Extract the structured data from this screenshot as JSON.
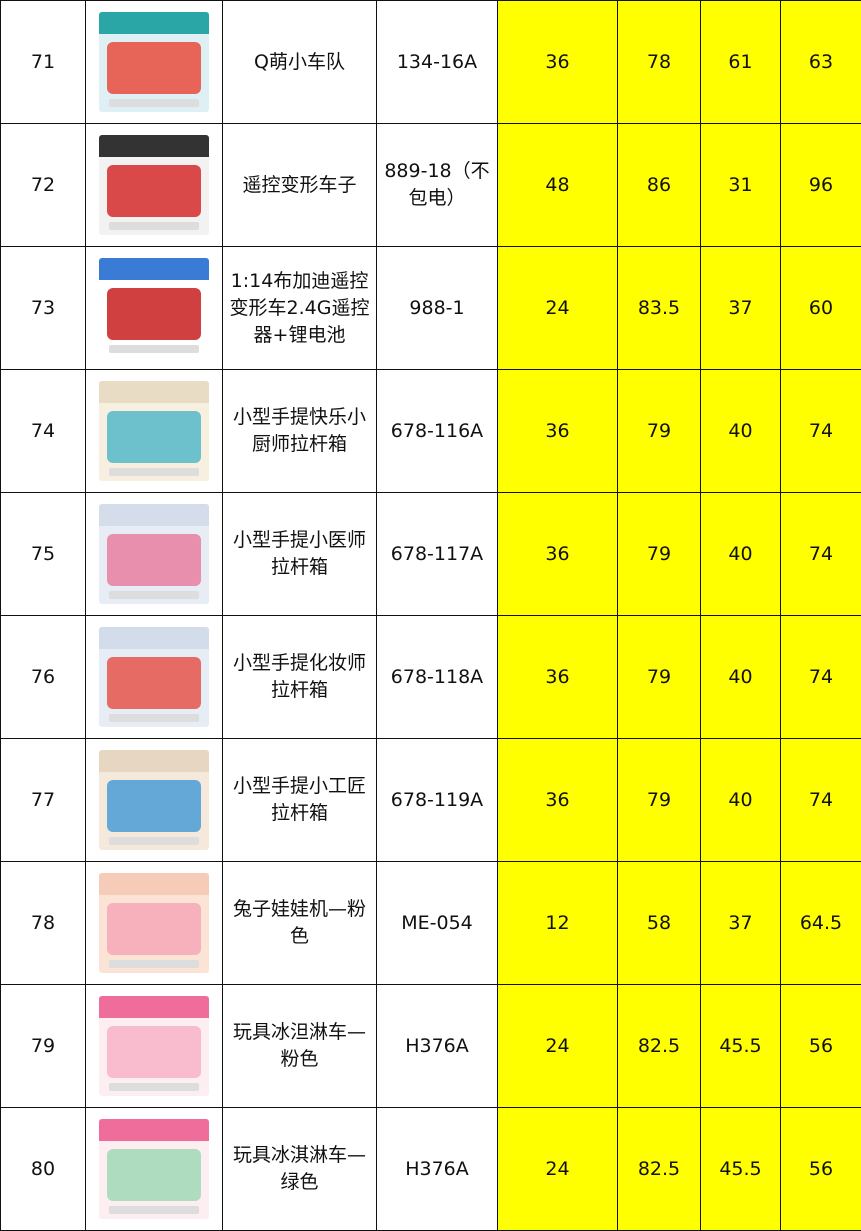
{
  "rows": [
    {
      "no": "71",
      "name": "Q萌小车队",
      "code": "134-16A",
      "v1": "36",
      "v2": "78",
      "v3": "61",
      "v4": "63",
      "img": {
        "bg": "#dff0f5",
        "band": "#2ba6a6",
        "body": "#e94b3c"
      }
    },
    {
      "no": "72",
      "name": "遥控变形车子",
      "code": "889-18（不包电）",
      "v1": "48",
      "v2": "86",
      "v3": "31",
      "v4": "96",
      "img": {
        "bg": "#f2f2f2",
        "band": "#333333",
        "body": "#d62b2b"
      }
    },
    {
      "no": "73",
      "name": "1:14布加迪遥控变形车2.4G遥控器+锂电池",
      "code": "988-1",
      "v1": "24",
      "v2": "83.5",
      "v3": "37",
      "v4": "60",
      "img": {
        "bg": "#ffffff",
        "band": "#3a7bd5",
        "body": "#c81e1e"
      }
    },
    {
      "no": "74",
      "name": "小型手提快乐小厨师拉杆箱",
      "code": "678-116A",
      "v1": "36",
      "v2": "79",
      "v3": "40",
      "v4": "74",
      "img": {
        "bg": "#f7efe0",
        "band": "#e9dcc4",
        "body": "#55b8c9"
      }
    },
    {
      "no": "75",
      "name": "小型手提小医师拉杆箱",
      "code": "678-117A",
      "v1": "36",
      "v2": "79",
      "v3": "40",
      "v4": "74",
      "img": {
        "bg": "#e8ecf5",
        "band": "#d5dcea",
        "body": "#e77fa0"
      }
    },
    {
      "no": "76",
      "name": "小型手提化妆师拉杆箱",
      "code": "678-118A",
      "v1": "36",
      "v2": "79",
      "v3": "40",
      "v4": "74",
      "img": {
        "bg": "#e6edf5",
        "band": "#d3dcea",
        "body": "#e5544b"
      }
    },
    {
      "no": "77",
      "name": "小型手提小工匠拉杆箱",
      "code": "678-119A",
      "v1": "36",
      "v2": "79",
      "v3": "40",
      "v4": "74",
      "img": {
        "bg": "#f5e9dc",
        "band": "#e6d6c2",
        "body": "#4a9cd6"
      }
    },
    {
      "no": "78",
      "name": "兔子娃娃机—粉色",
      "code": "ME-054",
      "v1": "12",
      "v2": "58",
      "v3": "37",
      "v4": "64.5",
      "img": {
        "bg": "#fbe3d6",
        "band": "#f6cbb8",
        "body": "#f4a8b8"
      }
    },
    {
      "no": "79",
      "name": "玩具冰泹淋车—粉色",
      "code": "H376A",
      "v1": "24",
      "v2": "82.5",
      "v3": "45.5",
      "v4": "56",
      "img": {
        "bg": "#fdeef2",
        "band": "#ee6d9a",
        "body": "#f7b3c8"
      }
    },
    {
      "no": "80",
      "name": "玩具冰淇淋车—绿色",
      "code": "H376A",
      "v1": "24",
      "v2": "82.5",
      "v3": "45.5",
      "v4": "56",
      "img": {
        "bg": "#fdeef2",
        "band": "#ee6d9a",
        "body": "#9fd9b5"
      }
    }
  ]
}
